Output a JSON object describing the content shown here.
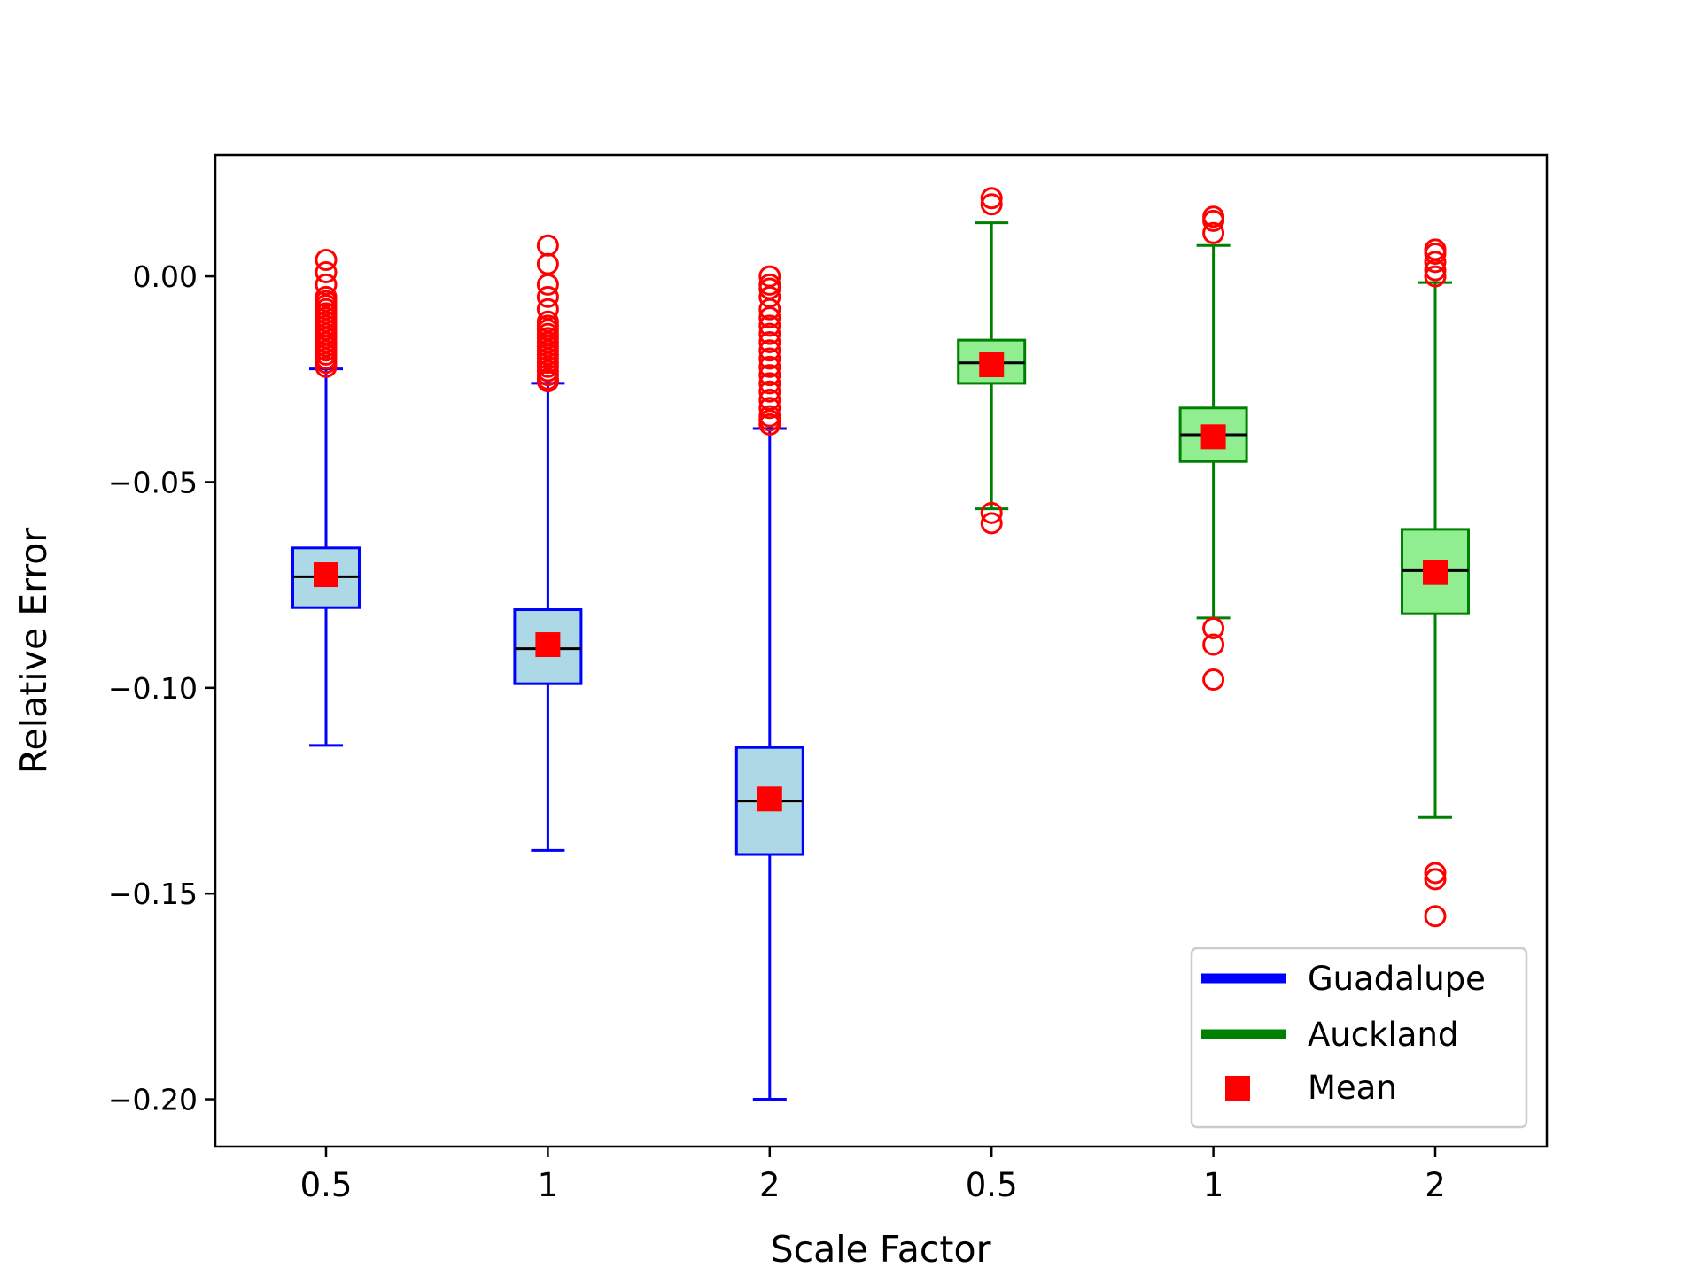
{
  "chart_data": {
    "type": "box",
    "title": "",
    "xlabel": "Scale Factor",
    "ylabel": "Relative Error",
    "ylim": [
      -0.2115,
      0.0295
    ],
    "yticks": [
      0.0,
      -0.05,
      -0.1,
      -0.15,
      -0.2
    ],
    "ytick_labels": [
      "0.00",
      "−0.05",
      "−0.10",
      "−0.15",
      "−0.20"
    ],
    "categories": [
      "0.5",
      "1",
      "2",
      "0.5",
      "1",
      "2"
    ],
    "colors": {
      "Guadalupe": "#0000ff",
      "Guadalupe_fill": "#add8e6",
      "Auckland": "#008000",
      "Auckland_fill": "#90ee90",
      "outlier": "#ff0000",
      "mean": "#ff0000",
      "median": "#000000"
    },
    "series": [
      {
        "name": "Guadalupe",
        "boxes": [
          {
            "category": "0.5",
            "whislo": -0.114,
            "q1": -0.0805,
            "median": -0.073,
            "q3": -0.066,
            "whishi": -0.0225,
            "mean": -0.0725,
            "fliers": [
              0.004,
              0.001,
              -0.002,
              -0.005,
              -0.006,
              -0.007,
              -0.008,
              -0.009,
              -0.01,
              -0.011,
              -0.012,
              -0.013,
              -0.014,
              -0.015,
              -0.016,
              -0.017,
              -0.018,
              -0.019,
              -0.02,
              -0.021,
              -0.022
            ]
          },
          {
            "category": "1",
            "whislo": -0.1395,
            "q1": -0.099,
            "median": -0.0905,
            "q3": -0.081,
            "whishi": -0.026,
            "mean": -0.0895,
            "fliers": [
              0.0075,
              0.003,
              -0.002,
              -0.005,
              -0.008,
              -0.011,
              -0.012,
              -0.013,
              -0.014,
              -0.015,
              -0.016,
              -0.017,
              -0.018,
              -0.019,
              -0.02,
              -0.021,
              -0.022,
              -0.023,
              -0.024,
              -0.025,
              -0.0255
            ]
          },
          {
            "category": "2",
            "whislo": -0.2,
            "q1": -0.1405,
            "median": -0.1275,
            "q3": -0.1145,
            "whishi": -0.037,
            "mean": -0.127,
            "fliers": [
              0.0,
              -0.002,
              -0.003,
              -0.005,
              -0.008,
              -0.01,
              -0.012,
              -0.014,
              -0.016,
              -0.018,
              -0.02,
              -0.022,
              -0.024,
              -0.026,
              -0.028,
              -0.03,
              -0.032,
              -0.034,
              -0.035,
              -0.036
            ]
          }
        ]
      },
      {
        "name": "Auckland",
        "boxes": [
          {
            "category": "0.5",
            "whislo": -0.0565,
            "q1": -0.026,
            "median": -0.021,
            "q3": -0.0155,
            "whishi": 0.013,
            "mean": -0.0215,
            "fliers": [
              0.019,
              0.0175,
              -0.0575,
              -0.06
            ]
          },
          {
            "category": "1",
            "whislo": -0.083,
            "q1": -0.045,
            "median": -0.0385,
            "q3": -0.032,
            "whishi": 0.0075,
            "mean": -0.039,
            "fliers": [
              0.0145,
              0.0135,
              0.0105,
              -0.0855,
              -0.0895,
              -0.098
            ]
          },
          {
            "category": "2",
            "whislo": -0.1315,
            "q1": -0.082,
            "median": -0.0715,
            "q3": -0.0615,
            "whishi": -0.0015,
            "mean": -0.072,
            "fliers": [
              0.0065,
              0.0055,
              0.0035,
              0.0015,
              0.0,
              -0.145,
              -0.1465,
              -0.1555
            ]
          }
        ]
      }
    ],
    "legend": {
      "position": "lower-right",
      "entries": [
        {
          "label": "Guadalupe",
          "marker": "line",
          "color": "#0000ff"
        },
        {
          "label": "Auckland",
          "marker": "line",
          "color": "#008000"
        },
        {
          "label": "Mean",
          "marker": "square",
          "color": "#ff0000"
        }
      ]
    }
  }
}
